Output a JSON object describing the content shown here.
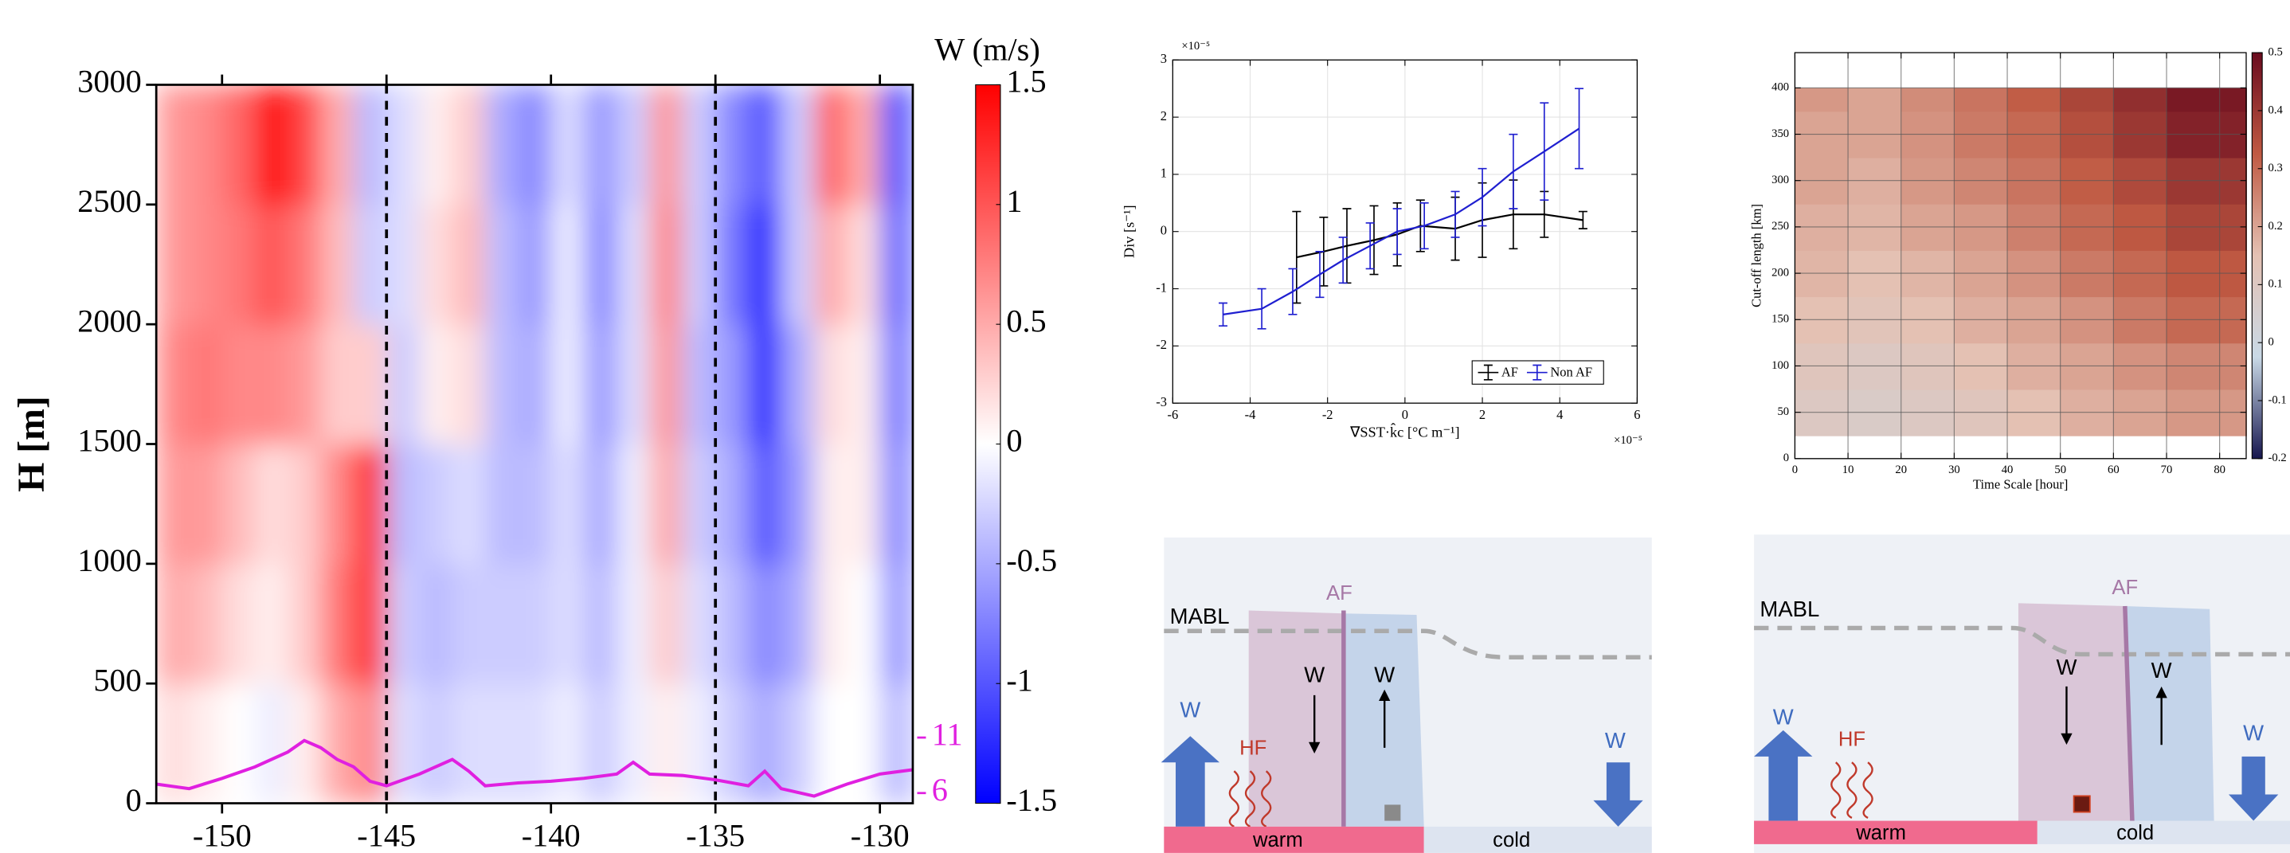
{
  "chart_data": [
    {
      "type": "heatmap",
      "ylabel": "H [m]",
      "xlim": [
        -152,
        -129
      ],
      "ylim": [
        0,
        3000
      ],
      "xticks": [
        -150,
        -145,
        -140,
        -135,
        -130
      ],
      "yticks": [
        0,
        500,
        1000,
        1500,
        2000,
        2500,
        3000
      ],
      "x_edges": [
        -152,
        -151,
        -150,
        -149,
        -148,
        -147,
        -146,
        -145,
        -144,
        -143,
        -142,
        -141,
        -140,
        -139,
        -138,
        -137,
        -136,
        -135,
        -134,
        -133,
        -132,
        -131,
        -130,
        -129
      ],
      "y_edges": [
        0,
        500,
        1000,
        1500,
        2000,
        2500,
        3000
      ],
      "z": [
        [
          0.2,
          0.1,
          0.0,
          -0.1,
          0.1,
          0.5,
          0.7,
          -0.2,
          -0.3,
          -0.2,
          -0.2,
          -0.2,
          -0.1,
          -0.3,
          -0.1,
          0.1,
          -0.1,
          -0.3,
          -0.5,
          -0.3,
          0.0,
          0.0,
          -0.4
        ],
        [
          0.5,
          0.4,
          0.2,
          0.1,
          0.3,
          0.8,
          1.2,
          -0.3,
          -0.4,
          -0.3,
          -0.3,
          -0.3,
          -0.2,
          -0.4,
          -0.1,
          0.3,
          -0.2,
          -0.4,
          -0.7,
          -0.5,
          0.1,
          0.0,
          -0.6
        ],
        [
          0.6,
          0.6,
          0.4,
          0.2,
          0.3,
          0.7,
          1.2,
          -0.4,
          -0.3,
          -0.2,
          -0.4,
          -0.4,
          -0.2,
          -0.5,
          -0.1,
          0.5,
          -0.3,
          -0.5,
          -1.0,
          -0.6,
          0.1,
          0.1,
          -0.7
        ],
        [
          0.7,
          0.8,
          0.7,
          0.7,
          0.6,
          0.3,
          0.3,
          -0.3,
          0.1,
          0.2,
          -0.4,
          -0.5,
          -0.1,
          -0.6,
          -0.2,
          0.6,
          -0.4,
          -0.6,
          -1.3,
          -0.5,
          0.2,
          0.1,
          -0.8
        ],
        [
          0.6,
          0.7,
          0.8,
          1.0,
          0.8,
          0.4,
          -0.3,
          -0.2,
          0.2,
          0.4,
          -0.4,
          -0.6,
          -0.1,
          -0.7,
          -0.2,
          0.7,
          -0.3,
          -0.8,
          -1.3,
          -0.3,
          0.5,
          0.2,
          -0.9
        ],
        [
          0.6,
          0.7,
          0.9,
          1.4,
          1.1,
          0.5,
          -0.4,
          -0.2,
          0.1,
          0.3,
          -0.5,
          -0.7,
          -0.2,
          -0.6,
          -0.3,
          0.6,
          -0.3,
          -0.7,
          -1.0,
          -0.3,
          0.9,
          0.5,
          -1.0
        ]
      ],
      "colormap": [
        "#0000ff",
        "#ffffff",
        "#ff0000"
      ],
      "colorbar": {
        "label": "W (m/s)",
        "lim": [
          -1.5,
          1.5
        ],
        "ticks": [
          -1.5,
          -1,
          -0.5,
          0,
          0.5,
          1,
          1.5
        ]
      },
      "vlines": [
        -145,
        -135
      ],
      "series": [
        {
          "color": "#e020e0",
          "x": [
            -152,
            -151,
            -150,
            -149,
            -148,
            -147.5,
            -147,
            -146.5,
            -146,
            -145.5,
            -145,
            -144,
            -143,
            -142.5,
            -142,
            -141,
            -140,
            -139,
            -138,
            -137.5,
            -137,
            -136,
            -135,
            -134,
            -133.5,
            -133,
            -132,
            -131,
            -130,
            -129
          ],
          "values": [
            80,
            61,
            104,
            152,
            214,
            262,
            232,
            183,
            152,
            92,
            73,
            122,
            183,
            134,
            73,
            85,
            92,
            104,
            122,
            171,
            122,
            116,
            98,
            73,
            134,
            61,
            30,
            80,
            122,
            140
          ]
        }
      ],
      "y2lim": [
        5.08,
        69.82
      ],
      "y2ticks": [
        6,
        11
      ],
      "y2color": "#e020e0"
    },
    {
      "type": "errorbar",
      "xlabel": "∇SST·k̂c [°C m⁻¹]",
      "ylabel": "Div [s⁻¹]",
      "x_exponent": "×10⁻⁵",
      "y_exponent": "×10⁻⁵",
      "xlim": [
        -6,
        6
      ],
      "ylim": [
        -3,
        3
      ],
      "xticks": [
        -6,
        -4,
        -2,
        0,
        2,
        4,
        6
      ],
      "yticks": [
        -3,
        -2,
        -1,
        0,
        1,
        2,
        3
      ],
      "grid": true,
      "legend": "lower right",
      "series": [
        {
          "name": "AF",
          "color": "#000000",
          "x": [
            -2.8,
            -2.1,
            -1.5,
            -0.8,
            -0.2,
            0.4,
            1.3,
            2.0,
            2.8,
            3.6,
            4.6
          ],
          "values": [
            -0.45,
            -0.35,
            -0.25,
            -0.15,
            -0.05,
            0.1,
            0.05,
            0.2,
            0.3,
            0.3,
            0.2
          ],
          "errors": [
            0.8,
            0.6,
            0.65,
            0.6,
            0.55,
            0.45,
            0.55,
            0.65,
            0.6,
            0.4,
            0.15
          ]
        },
        {
          "name": "Non AF",
          "color": "#1f1fd0",
          "x": [
            -4.7,
            -3.7,
            -2.9,
            -2.2,
            -1.6,
            -0.9,
            -0.2,
            0.5,
            1.3,
            2.0,
            2.8,
            3.6,
            4.5
          ],
          "values": [
            -1.45,
            -1.35,
            -1.05,
            -0.75,
            -0.5,
            -0.25,
            0.0,
            0.1,
            0.3,
            0.6,
            1.05,
            1.4,
            1.8
          ],
          "errors": [
            0.2,
            0.35,
            0.4,
            0.4,
            0.4,
            0.4,
            0.4,
            0.4,
            0.4,
            0.5,
            0.65,
            0.85,
            0.7
          ]
        }
      ]
    },
    {
      "type": "heatmap",
      "xlabel": "Time Scale [hour]",
      "ylabel": "Cut-off length [km]",
      "xlim": [
        0,
        85
      ],
      "ylim": [
        0,
        438
      ],
      "xticks": [
        0,
        10,
        20,
        30,
        40,
        50,
        60,
        70,
        80
      ],
      "yticks": [
        0,
        50,
        100,
        150,
        200,
        250,
        300,
        350,
        400
      ],
      "grid": true,
      "x_edges": [
        0,
        10,
        20,
        30,
        40,
        50,
        60,
        70,
        85
      ],
      "y_edges": [
        25,
        75,
        125,
        175,
        225,
        275,
        325,
        375,
        400
      ],
      "z": [
        [
          0.1,
          0.08,
          0.1,
          0.12,
          0.15,
          0.18,
          0.2,
          0.22
        ],
        [
          0.12,
          0.1,
          0.12,
          0.15,
          0.18,
          0.2,
          0.23,
          0.25
        ],
        [
          0.15,
          0.13,
          0.15,
          0.18,
          0.2,
          0.23,
          0.27,
          0.3
        ],
        [
          0.17,
          0.15,
          0.17,
          0.2,
          0.23,
          0.27,
          0.3,
          0.33
        ],
        [
          0.18,
          0.17,
          0.2,
          0.22,
          0.26,
          0.3,
          0.33,
          0.37
        ],
        [
          0.2,
          0.18,
          0.22,
          0.25,
          0.28,
          0.32,
          0.36,
          0.4
        ],
        [
          0.2,
          0.2,
          0.23,
          0.27,
          0.3,
          0.35,
          0.4,
          0.45
        ],
        [
          0.22,
          0.2,
          0.24,
          0.28,
          0.32,
          0.37,
          0.42,
          0.47
        ]
      ],
      "colormap": [
        "#16164e",
        "#c9d9e6",
        "#e4c1b3",
        "#c05a43",
        "#6a0b1e"
      ],
      "colorbar": {
        "lim": [
          -0.2,
          0.5
        ],
        "ticks": [
          -0.2,
          -0.1,
          0,
          0.1,
          0.2,
          0.3,
          0.4,
          0.5
        ]
      }
    }
  ],
  "diagrams": [
    {
      "mabl": "MABL",
      "af": "AF",
      "w_down": "W",
      "w_up": "W",
      "w_left": "W",
      "hf": "HF",
      "w_right": "W",
      "warm": "warm",
      "cold": "cold"
    },
    {
      "mabl": "MABL",
      "af": "AF",
      "w_down": "W",
      "w_up": "W",
      "w_left": "W",
      "hf": "HF",
      "w_right": "W",
      "warm": "warm",
      "cold": "cold"
    }
  ]
}
